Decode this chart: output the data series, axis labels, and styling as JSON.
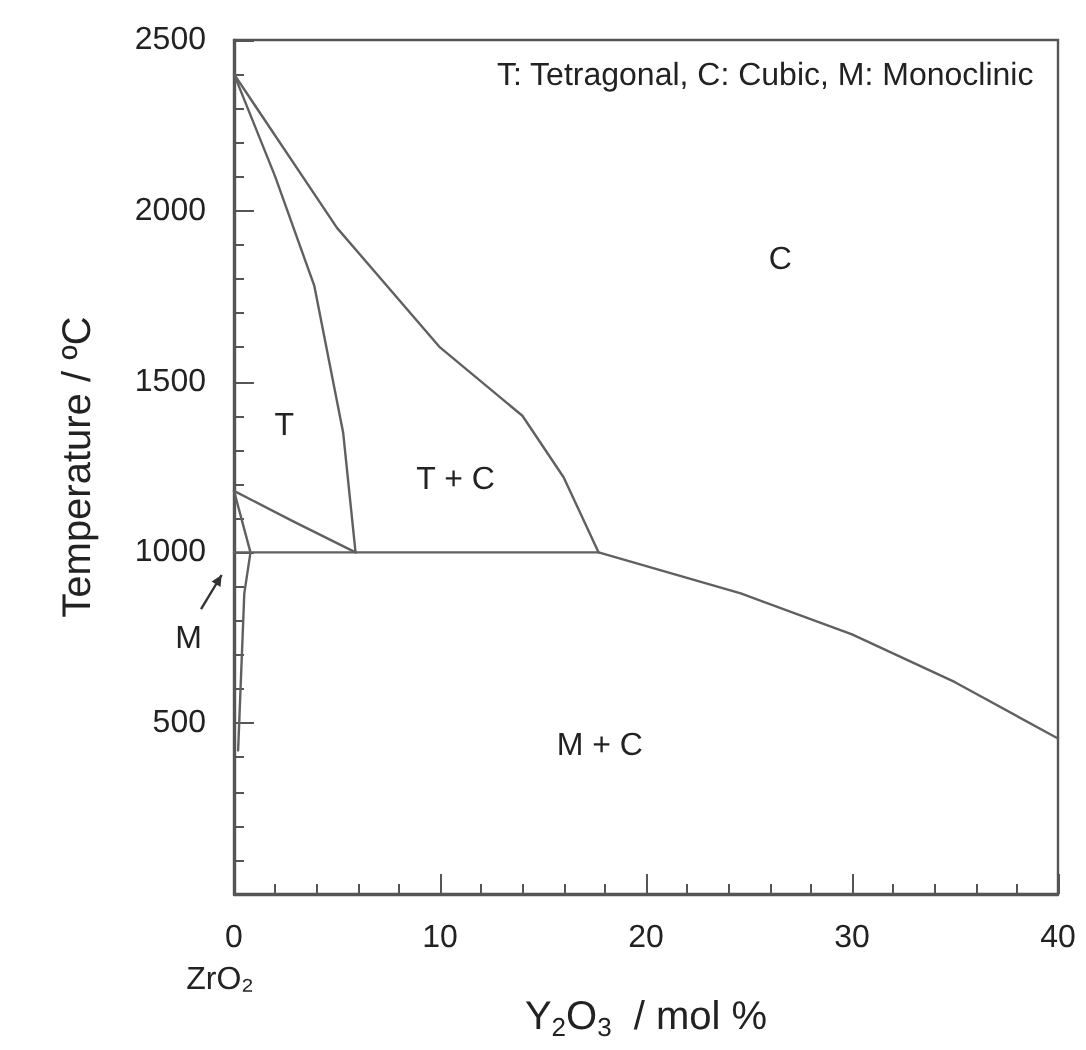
{
  "chart_data": {
    "type": "line",
    "xlabel": "Y$_{2}$O$_{3}$  / mol %",
    "ylabel": "Temperature / ºC",
    "xlim": [
      0,
      40
    ],
    "xticks": [
      0,
      10,
      20,
      30,
      40
    ],
    "ylim": [
      0,
      2500
    ],
    "yticks": [
      {
        "value": 0,
        "label": null
      },
      500,
      1000,
      1500,
      2000,
      2500
    ],
    "grid": false,
    "marker": "none",
    "line_style": "solid",
    "series": [
      {
        "color": "#606060",
        "x": [
          0,
          5,
          10,
          14,
          16,
          17.7
        ],
        "values": [
          2400,
          1950,
          1600,
          1400,
          1220,
          1000
        ]
      },
      {
        "color": "#606060",
        "x": [
          0,
          2,
          3.9,
          5.3,
          5.9
        ],
        "values": [
          2400,
          2100,
          1780,
          1350,
          1000
        ]
      },
      {
        "color": "#606060",
        "x": [
          0,
          2.9,
          5.9
        ],
        "values": [
          1180,
          1090,
          1000
        ]
      },
      {
        "color": "#606060",
        "x": [
          0,
          17.7,
          24.6,
          30,
          35,
          40
        ],
        "values": [
          1000,
          1000,
          880,
          760,
          620,
          455
        ]
      },
      {
        "color": "#606060",
        "x": [
          0,
          0.8,
          0.5,
          0.2
        ],
        "values": [
          1180,
          1000,
          880,
          420
        ]
      }
    ],
    "annotations": [
      "T: Tetragonal, C: Cubic, M: Monoclinic",
      "C",
      "T",
      "T + C",
      "M + C",
      "M",
      "ZrO₂"
    ]
  }
}
